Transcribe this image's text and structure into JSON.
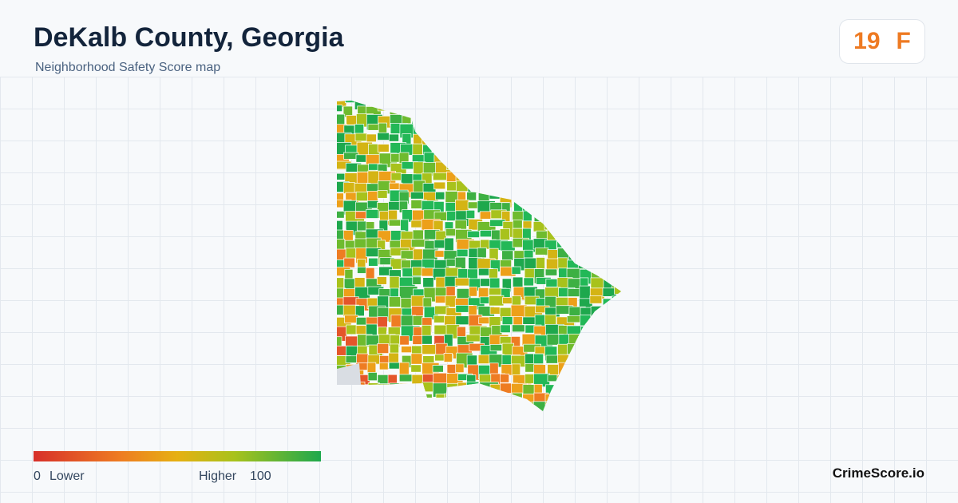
{
  "header": {
    "title": "DeKalb County, Georgia",
    "subtitle": "Neighborhood Safety Score map"
  },
  "score": {
    "value": 19,
    "grade": "F"
  },
  "legend": {
    "min": "0",
    "min_label": "Lower",
    "max_label": "Higher",
    "max": "100"
  },
  "brand": "CrimeScore.io"
}
